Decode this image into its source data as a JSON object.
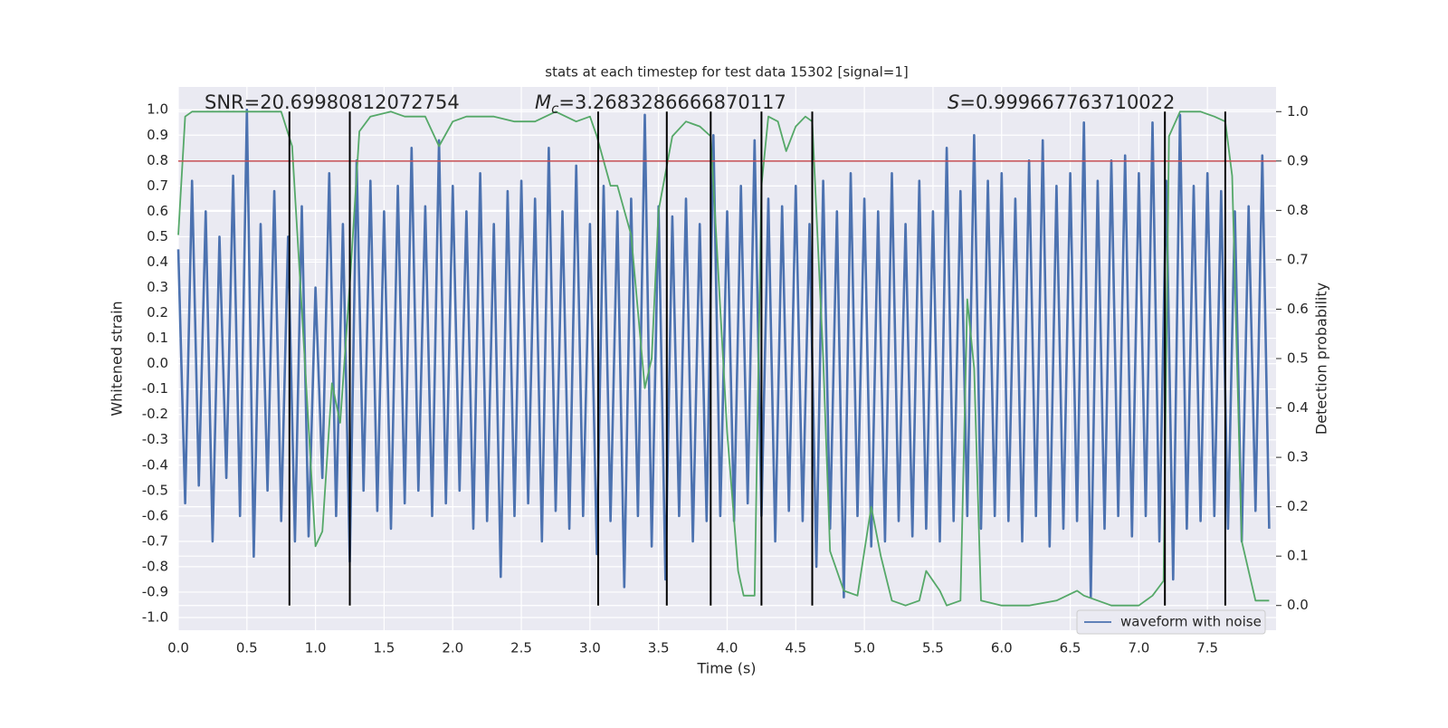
{
  "chart_data": {
    "type": "line",
    "title": "stats at each timestep for test data 15302 [signal=1]",
    "xlabel": "Time (s)",
    "ylabel": "Whitened strain",
    "y2label": "Detection probability",
    "annotations": [
      {
        "text": "SNR=20.69980812072754"
      },
      {
        "symbol": "M",
        "subscript": "c",
        "text": "=3.2683286666870117"
      },
      {
        "symbol": "S",
        "text": "=0.999667763710022"
      }
    ],
    "xlim": [
      0,
      8
    ],
    "ylim": [
      -1.05,
      1.09
    ],
    "y2lim": [
      -0.05,
      1.05
    ],
    "xticks": [
      {
        "value": 0,
        "label": "0.0"
      },
      0.5,
      {
        "value": 1,
        "label": "1.0"
      },
      1.5,
      {
        "value": 2,
        "label": "2.0"
      },
      2.5,
      {
        "value": 3,
        "label": "3.0"
      },
      3.5,
      {
        "value": 4,
        "label": "4.0"
      },
      4.5,
      {
        "value": 5,
        "label": "5.0"
      },
      5.5,
      {
        "value": 6,
        "label": "6.0"
      },
      6.5,
      {
        "value": 7,
        "label": "7.0"
      },
      7.5
    ],
    "yticks": [
      {
        "value": -1,
        "label": "-1.0"
      },
      -0.9,
      -0.8,
      -0.7,
      -0.6,
      -0.5,
      -0.4,
      -0.3,
      -0.2,
      -0.1,
      {
        "value": 0,
        "label": "0.0"
      },
      0.1,
      0.2,
      0.3,
      0.4,
      0.5,
      0.6,
      0.7,
      0.8,
      0.9,
      {
        "value": 1,
        "label": "1.0"
      }
    ],
    "y2ticks": [
      {
        "value": 0,
        "label": "0.0"
      },
      0.1,
      0.2,
      0.3,
      0.4,
      0.5,
      0.6,
      0.7,
      0.8,
      0.9,
      {
        "value": 1,
        "label": "1.0"
      }
    ],
    "grid": true,
    "legend": "lower right",
    "series": [
      {
        "name": "waveform with noise",
        "color": "#4c72b0",
        "axis": "y",
        "x": [
          0,
          0.05,
          0.1,
          0.15,
          0.2,
          0.25,
          0.3,
          0.35,
          0.4,
          0.45,
          0.5,
          0.55,
          0.6,
          0.65,
          0.7,
          0.75,
          0.8,
          0.85,
          0.9,
          0.95,
          1,
          1.05,
          1.1,
          1.15,
          1.2,
          1.25,
          1.3,
          1.35,
          1.4,
          1.45,
          1.5,
          1.55,
          1.6,
          1.65,
          1.7,
          1.75,
          1.8,
          1.85,
          1.9,
          1.95,
          2,
          2.05,
          2.1,
          2.15,
          2.2,
          2.25,
          2.3,
          2.35,
          2.4,
          2.45,
          2.5,
          2.55,
          2.6,
          2.65,
          2.7,
          2.75,
          2.8,
          2.85,
          2.9,
          2.95,
          3,
          3.05,
          3.1,
          3.15,
          3.2,
          3.25,
          3.3,
          3.35,
          3.4,
          3.45,
          3.5,
          3.55,
          3.6,
          3.65,
          3.7,
          3.75,
          3.8,
          3.85,
          3.9,
          3.95,
          4,
          4.05,
          4.1,
          4.15,
          4.2,
          4.25,
          4.3,
          4.35,
          4.4,
          4.45,
          4.5,
          4.55,
          4.6,
          4.65,
          4.7,
          4.75,
          4.8,
          4.85,
          4.9,
          4.95,
          5,
          5.05,
          5.1,
          5.15,
          5.2,
          5.25,
          5.3,
          5.35,
          5.4,
          5.45,
          5.5,
          5.55,
          5.6,
          5.65,
          5.7,
          5.75,
          5.8,
          5.85,
          5.9,
          5.95,
          6,
          6.05,
          6.1,
          6.15,
          6.2,
          6.25,
          6.3,
          6.35,
          6.4,
          6.45,
          6.5,
          6.55,
          6.6,
          6.65,
          6.7,
          6.75,
          6.8,
          6.85,
          6.9,
          6.95,
          7,
          7.05,
          7.1,
          7.15,
          7.2,
          7.25,
          7.3,
          7.35,
          7.4,
          7.45,
          7.5,
          7.55,
          7.6,
          7.65,
          7.7,
          7.75,
          7.8,
          7.85,
          7.9,
          7.95
        ],
        "values": [
          0.45,
          -0.55,
          0.72,
          -0.48,
          0.6,
          -0.7,
          0.5,
          -0.45,
          0.74,
          -0.6,
          1.0,
          -0.76,
          0.55,
          -0.5,
          0.68,
          -0.62,
          0.5,
          -0.7,
          0.62,
          -0.68,
          0.3,
          -0.45,
          0.75,
          -0.6,
          0.55,
          -0.78,
          0.8,
          -0.5,
          0.72,
          -0.58,
          0.6,
          -0.65,
          0.7,
          -0.55,
          0.85,
          -0.5,
          0.62,
          -0.6,
          0.88,
          -0.55,
          0.7,
          -0.5,
          0.6,
          -0.65,
          0.75,
          -0.62,
          0.55,
          -0.84,
          0.68,
          -0.6,
          0.72,
          -0.55,
          0.65,
          -0.7,
          0.85,
          -0.58,
          0.6,
          -0.65,
          0.78,
          -0.6,
          0.55,
          -0.75,
          0.7,
          -0.62,
          0.6,
          -0.88,
          0.65,
          -0.6,
          0.98,
          -0.72,
          0.62,
          -0.85,
          0.58,
          -0.6,
          0.65,
          -0.7,
          0.55,
          -0.62,
          0.9,
          -0.6,
          0.6,
          -0.62,
          0.7,
          -0.55,
          0.88,
          -0.6,
          0.65,
          -0.7,
          0.62,
          -0.58,
          0.7,
          -0.62,
          0.55,
          -0.8,
          0.72,
          -0.65,
          0.6,
          -0.92,
          0.75,
          -0.6,
          0.65,
          -0.72,
          0.6,
          -0.7,
          0.75,
          -0.62,
          0.55,
          -0.68,
          0.72,
          -0.65,
          0.6,
          -0.7,
          0.85,
          -0.62,
          0.68,
          -0.6,
          0.9,
          -0.65,
          0.72,
          -0.6,
          0.75,
          -0.62,
          0.65,
          -0.7,
          0.8,
          -0.6,
          0.88,
          -0.72,
          0.7,
          -0.65,
          0.75,
          -0.62,
          0.95,
          -0.92,
          0.72,
          -0.65,
          0.8,
          -0.6,
          0.82,
          -0.68,
          0.75,
          -0.6,
          0.95,
          -0.7,
          0.72,
          -0.85,
          0.98,
          -0.65,
          0.7,
          -0.62,
          0.75,
          -0.6,
          0.68,
          -0.65,
          0.6,
          -0.7,
          0.62,
          -0.58,
          0.82,
          -0.65
        ]
      },
      {
        "color": "#55a868",
        "axis": "y2",
        "x": [
          0,
          0.05,
          0.1,
          0.75,
          0.83,
          0.9,
          1,
          1.05,
          1.12,
          1.18,
          1.25,
          1.32,
          1.4,
          1.55,
          1.65,
          1.8,
          1.9,
          2,
          2.1,
          2.3,
          2.45,
          2.6,
          2.75,
          2.9,
          3,
          3.05,
          3.15,
          3.2,
          3.3,
          3.4,
          3.45,
          3.5,
          3.6,
          3.7,
          3.8,
          3.88,
          4,
          4.08,
          4.12,
          4.2,
          4.25,
          4.3,
          4.37,
          4.43,
          4.5,
          4.57,
          4.62,
          4.7,
          4.75,
          4.85,
          4.95,
          5.05,
          5.12,
          5.2,
          5.3,
          5.4,
          5.45,
          5.55,
          5.6,
          5.7,
          5.75,
          5.8,
          5.85,
          6,
          6.2,
          6.4,
          6.55,
          6.6,
          6.8,
          7,
          7.1,
          7.18,
          7.22,
          7.3,
          7.45,
          7.55,
          7.63,
          7.68,
          7.75,
          7.85,
          7.95
        ],
        "values": [
          0.75,
          0.99,
          1.0,
          1.0,
          0.93,
          0.6,
          0.12,
          0.15,
          0.45,
          0.37,
          0.65,
          0.96,
          0.99,
          1.0,
          0.99,
          0.99,
          0.93,
          0.98,
          0.99,
          0.99,
          0.98,
          0.98,
          1.0,
          0.98,
          0.99,
          0.95,
          0.85,
          0.85,
          0.75,
          0.44,
          0.5,
          0.8,
          0.95,
          0.98,
          0.97,
          0.95,
          0.35,
          0.07,
          0.02,
          0.02,
          0.85,
          0.99,
          0.98,
          0.92,
          0.97,
          0.99,
          0.98,
          0.5,
          0.11,
          0.03,
          0.02,
          0.2,
          0.1,
          0.01,
          0.0,
          0.01,
          0.07,
          0.03,
          0.0,
          0.01,
          0.62,
          0.48,
          0.01,
          0.0,
          0.0,
          0.01,
          0.03,
          0.02,
          0.0,
          0.0,
          0.02,
          0.05,
          0.95,
          1.0,
          1.0,
          0.99,
          0.98,
          0.87,
          0.13,
          0.01,
          0.01
        ]
      }
    ],
    "hline": {
      "y": 0.9,
      "axis": "y2",
      "color": "#c44e52"
    },
    "vlines": {
      "x": [
        0.81,
        1.25,
        3.06,
        3.56,
        3.88,
        4.25,
        4.62,
        7.19,
        7.63
      ],
      "ymin": 0,
      "ymax": 1,
      "axis": "y2",
      "color": "#000000"
    }
  }
}
